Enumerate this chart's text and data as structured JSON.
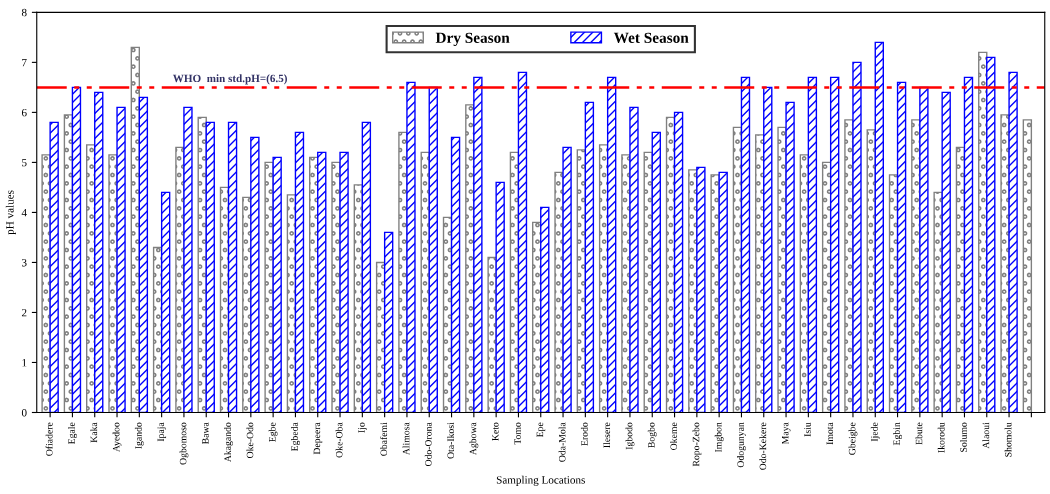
{
  "chart_data": {
    "type": "bar",
    "xlabel": "Sampling Locations",
    "ylabel": "pH values",
    "categories": [
      "Ofiadere",
      "Egale",
      "Kaka",
      "Ayedoo",
      "Igando",
      "Ipaja",
      "Ogbomoso",
      "Bawa",
      "Akagando",
      "Oke-Odo",
      "Egbe",
      "Egbeda",
      "Depeera",
      "Oke-Oba",
      "Ijo",
      "Obafemi",
      "Alimosa",
      "Odo-Orona",
      "Ota-Ikosi",
      "Agbowa",
      "Keto",
      "Tomo",
      "Epe",
      "Oda-Mola",
      "Erodo",
      "Ilesere",
      "Igbodo",
      "Bogbo",
      "Okeme",
      "Ropo-Zebo",
      "Imgbon",
      "Odogunyan",
      "Odo-Kekere",
      "Maya",
      "Isiu",
      "Imota",
      "Gbeigbe",
      "Ijede",
      "Egbin",
      "Ebute",
      "Ikorodu",
      "Solumo",
      "Alaoui",
      "Shomolu",
      null
    ],
    "series": [
      {
        "name": "Dry Season",
        "color": "#808080",
        "values": [
          5.15,
          5.95,
          5.35,
          5.15,
          7.3,
          3.3,
          5.3,
          5.9,
          4.5,
          4.3,
          5.0,
          4.35,
          5.1,
          5.0,
          4.55,
          3.0,
          5.6,
          5.2,
          3.9,
          6.15,
          3.1,
          5.2,
          3.8,
          4.8,
          5.25,
          5.35,
          5.15,
          5.2,
          5.9,
          4.85,
          4.75,
          5.7,
          5.55,
          5.7,
          5.15,
          5.0,
          5.85,
          5.65,
          4.75,
          5.85,
          4.4,
          5.3,
          7.2,
          5.95,
          5.85
        ]
      },
      {
        "name": "Wet Season",
        "color": "#0000ff",
        "values": [
          5.8,
          6.5,
          6.4,
          6.1,
          6.3,
          4.4,
          6.1,
          5.8,
          5.8,
          5.5,
          5.1,
          5.6,
          5.2,
          5.2,
          5.8,
          3.6,
          6.6,
          6.5,
          5.5,
          6.7,
          4.6,
          6.8,
          4.1,
          5.3,
          6.2,
          6.7,
          6.1,
          5.6,
          6.0,
          4.9,
          4.8,
          6.7,
          6.5,
          6.2,
          6.7,
          6.7,
          7.0,
          7.4,
          6.6,
          6.5,
          6.4,
          6.7,
          7.1,
          6.8,
          null
        ]
      }
    ],
    "ylim": [
      0,
      8
    ],
    "yticks": [
      0,
      1,
      2,
      3,
      4,
      5,
      6,
      7,
      8
    ],
    "grid": false,
    "legend": "top",
    "ref_lines": [
      {
        "axis": "y",
        "value": 6.5,
        "label": "WHO  min std.pH=(6.5)",
        "color": "#ff0000",
        "line_style": "dashdotdot"
      }
    ]
  }
}
